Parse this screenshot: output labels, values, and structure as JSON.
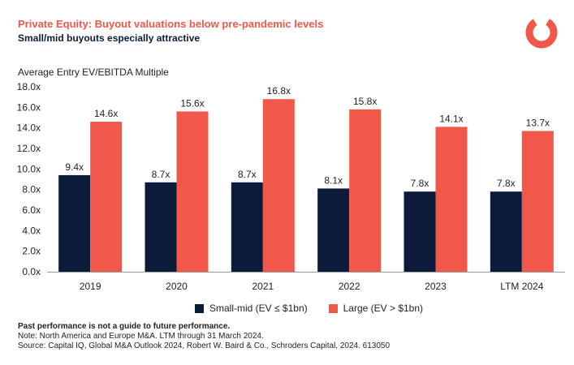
{
  "header": {
    "title": "Private Equity: Buyout valuations below pre-pandemic levels",
    "subtitle": "Small/mid buyouts especially attractive",
    "logo_icon": "schroders-ring-icon"
  },
  "colors": {
    "small_mid": "#0d1b3a",
    "large": "#f0584a",
    "title": "#f0584a",
    "axis": "#999999"
  },
  "chart_data": {
    "type": "bar",
    "ylabel": "Average Entry EV/EBITDA Multiple",
    "xlabel": "",
    "ylim": [
      0,
      18
    ],
    "yticks": [
      0,
      2,
      4,
      6,
      8,
      10,
      12,
      14,
      16,
      18
    ],
    "ytick_labels": [
      "0.0x",
      "2.0x",
      "4.0x",
      "6.0x",
      "8.0x",
      "10.0x",
      "12.0x",
      "14.0x",
      "16.0x",
      "18.0x"
    ],
    "categories": [
      "2019",
      "2020",
      "2021",
      "2022",
      "2023",
      "LTM 2024"
    ],
    "series": [
      {
        "name": "Small-mid (EV ≤ $1bn)",
        "values": [
          9.4,
          8.7,
          8.7,
          8.1,
          7.8,
          7.8
        ],
        "labels": [
          "9.4x",
          "8.7x",
          "8.7x",
          "8.1x",
          "7.8x",
          "7.8x"
        ]
      },
      {
        "name": "Large (EV > $1bn)",
        "values": [
          14.6,
          15.6,
          16.8,
          15.8,
          14.1,
          13.7
        ],
        "labels": [
          "14.6x",
          "15.6x",
          "16.8x",
          "15.8x",
          "14.1x",
          "13.7x"
        ]
      }
    ],
    "grid": false,
    "legend": "bottom-center"
  },
  "footer": {
    "disclaimer": "Past performance is not a guide to future performance.",
    "note": "Note: North America and Europe M&A. LTM through 31 March 2024.",
    "source": "Source: Capital IQ, Global M&A Outlook 2024, Robert W. Baird & Co., Schroders Capital, 2024. 613050"
  }
}
